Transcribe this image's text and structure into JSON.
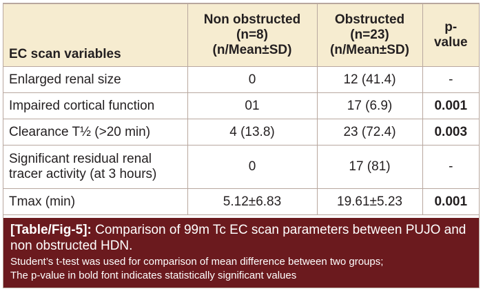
{
  "table": {
    "headers": [
      "EC scan variables",
      "Non obstructed (n=8) (n/Mean±SD)",
      "Obstructed (n=23) (n/Mean±SD)",
      "p-value"
    ],
    "header_lines": {
      "col1": [
        "EC scan variables"
      ],
      "col2": [
        "Non obstructed",
        "(n=8)",
        "(n/Mean±SD)"
      ],
      "col3": [
        "Obstructed",
        "(n=23)",
        "(n/Mean±SD)"
      ],
      "col4": [
        "p-",
        "value"
      ]
    },
    "rows": [
      {
        "variable": "Enlarged renal size",
        "non_obstructed": "0",
        "obstructed": "12 (41.4)",
        "p_value": "-",
        "p_bold": false
      },
      {
        "variable": "Impaired cortical function",
        "non_obstructed": "01",
        "obstructed": "17 (6.9)",
        "p_value": "0.001",
        "p_bold": true
      },
      {
        "variable": "Clearance T½ (>20 min)",
        "non_obstructed": "4 (13.8)",
        "obstructed": "23 (72.4)",
        "p_value": "0.003",
        "p_bold": true
      },
      {
        "variable": "Significant residual renal tracer activity (at 3 hours)",
        "variable_lines": [
          "Significant residual renal",
          "tracer activity (at 3 hours)"
        ],
        "non_obstructed": "0",
        "obstructed": "17 (81)",
        "p_value": "-",
        "p_bold": false
      },
      {
        "variable": "Tmax (min)",
        "non_obstructed": "5.12±6.83",
        "obstructed": "19.61±5.23",
        "p_value": "0.001",
        "p_bold": true
      }
    ]
  },
  "caption": {
    "label": "[Table/Fig-5]:",
    "title": "Comparison of 99m Tc EC scan parameters between PUJO and non obstructed HDN.",
    "note_1": "Student’s t-test was used for comparison of mean difference between two groups;",
    "note_2": "The p-value in bold font indicates statistically significant values"
  },
  "colors": {
    "header_bg": "#f6ecd0",
    "caption_bg": "#6b1a1e",
    "border": "#b8a79e"
  }
}
